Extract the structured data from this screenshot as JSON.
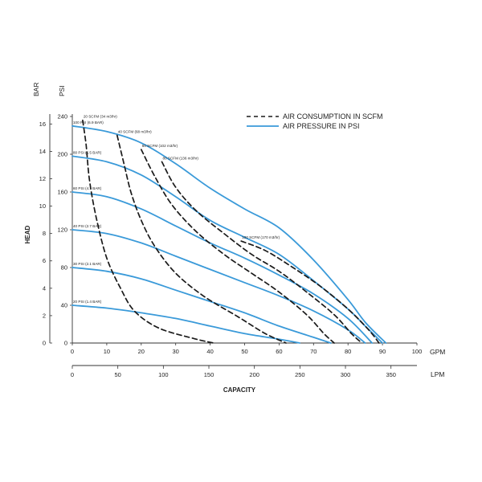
{
  "chart_data": {
    "type": "line",
    "title": "",
    "xlabel": "CAPACITY",
    "x_primary": {
      "unit": "GPM",
      "range": [
        0,
        100
      ],
      "ticks": [
        0,
        10,
        20,
        30,
        40,
        50,
        60,
        70,
        80,
        90,
        100
      ]
    },
    "x_secondary": {
      "unit": "LPM",
      "ticks": [
        0,
        50,
        100,
        150,
        200,
        250,
        300,
        350
      ]
    },
    "ylabel": "HEAD",
    "y_psi": {
      "unit": "PSI",
      "range": [
        0,
        240
      ],
      "ticks": [
        0,
        40,
        80,
        120,
        160,
        200,
        240
      ]
    },
    "y_bar": {
      "unit": "BAR",
      "ticks": [
        0,
        2,
        4,
        6,
        8,
        10,
        12,
        14,
        16
      ]
    },
    "grid": false,
    "legend": {
      "placement": "top-right",
      "entries": [
        {
          "label": "AIR CONSUMPTION IN SCFM",
          "style": "dashed",
          "color": "#1a1a1a"
        },
        {
          "label": "AIR PRESSURE IN PSI",
          "style": "solid",
          "color": "#3a9ad9"
        }
      ]
    },
    "series": [
      {
        "kind": "pressure",
        "label": "100 PSI (6.9 BAR)",
        "points": [
          [
            0,
            230
          ],
          [
            10,
            224
          ],
          [
            20,
            212
          ],
          [
            30,
            190
          ],
          [
            40,
            164
          ],
          [
            50,
            142
          ],
          [
            60,
            122
          ],
          [
            70,
            88
          ],
          [
            80,
            46
          ],
          [
            85,
            22
          ],
          [
            91,
            0
          ]
        ]
      },
      {
        "kind": "pressure",
        "label": "80 PSI (5.5 BAR)",
        "points": [
          [
            0,
            198
          ],
          [
            10,
            192
          ],
          [
            20,
            178
          ],
          [
            30,
            155
          ],
          [
            40,
            130
          ],
          [
            50,
            112
          ],
          [
            60,
            94
          ],
          [
            70,
            66
          ],
          [
            80,
            36
          ],
          [
            85,
            18
          ],
          [
            90,
            0
          ]
        ]
      },
      {
        "kind": "pressure",
        "label": "60 PSI (4.1 BAR)",
        "points": [
          [
            0,
            160
          ],
          [
            10,
            155
          ],
          [
            20,
            142
          ],
          [
            30,
            124
          ],
          [
            40,
            106
          ],
          [
            50,
            90
          ],
          [
            60,
            72
          ],
          [
            70,
            52
          ],
          [
            80,
            26
          ],
          [
            87,
            0
          ]
        ]
      },
      {
        "kind": "pressure",
        "label": "40 PSI (2.7 BAR)",
        "points": [
          [
            0,
            120
          ],
          [
            10,
            116
          ],
          [
            20,
            106
          ],
          [
            30,
            92
          ],
          [
            40,
            78
          ],
          [
            50,
            64
          ],
          [
            60,
            50
          ],
          [
            70,
            34
          ],
          [
            80,
            14
          ],
          [
            85,
            0
          ]
        ]
      },
      {
        "kind": "pressure",
        "label": "30 PSI (2.1 BAR)",
        "points": [
          [
            0,
            80
          ],
          [
            10,
            76
          ],
          [
            20,
            68
          ],
          [
            30,
            56
          ],
          [
            40,
            44
          ],
          [
            50,
            32
          ],
          [
            60,
            18
          ],
          [
            70,
            6
          ],
          [
            75,
            0
          ]
        ]
      },
      {
        "kind": "pressure",
        "label": "20 PSI (1.4 BAR)",
        "points": [
          [
            0,
            40
          ],
          [
            10,
            37
          ],
          [
            20,
            32
          ],
          [
            30,
            26
          ],
          [
            40,
            18
          ],
          [
            50,
            10
          ],
          [
            60,
            4
          ],
          [
            66,
            0
          ]
        ]
      },
      {
        "kind": "consumption",
        "label": "20 SCFM (34 m3/hr)",
        "points": [
          [
            3,
            236
          ],
          [
            4,
            210
          ],
          [
            5,
            172
          ],
          [
            7,
            132
          ],
          [
            10,
            90
          ],
          [
            14,
            58
          ],
          [
            18,
            34
          ],
          [
            25,
            16
          ],
          [
            35,
            5
          ],
          [
            41,
            0
          ]
        ]
      },
      {
        "kind": "consumption",
        "label": "40 SCFM (68 m3/hr)",
        "points": [
          [
            13,
            220
          ],
          [
            15,
            190
          ],
          [
            17,
            160
          ],
          [
            20,
            130
          ],
          [
            24,
            102
          ],
          [
            30,
            74
          ],
          [
            38,
            50
          ],
          [
            48,
            28
          ],
          [
            56,
            10
          ],
          [
            62,
            0
          ]
        ]
      },
      {
        "kind": "consumption",
        "label": "60 SCFM (102 m3/hr)",
        "points": [
          [
            20,
            205
          ],
          [
            24,
            176
          ],
          [
            29,
            146
          ],
          [
            36,
            118
          ],
          [
            44,
            94
          ],
          [
            52,
            74
          ],
          [
            60,
            54
          ],
          [
            68,
            30
          ],
          [
            73,
            10
          ],
          [
            76,
            0
          ]
        ]
      },
      {
        "kind": "consumption",
        "label": "80 SCFM (136 m3/hr)",
        "points": [
          [
            26,
            192
          ],
          [
            30,
            165
          ],
          [
            36,
            140
          ],
          [
            44,
            116
          ],
          [
            52,
            94
          ],
          [
            60,
            76
          ],
          [
            68,
            54
          ],
          [
            76,
            30
          ],
          [
            81,
            10
          ],
          [
            84,
            0
          ]
        ]
      },
      {
        "kind": "consumption",
        "label": "100 SCFM (170 m3/hr)",
        "points": [
          [
            49,
            108
          ],
          [
            56,
            98
          ],
          [
            64,
            80
          ],
          [
            72,
            60
          ],
          [
            80,
            36
          ],
          [
            86,
            14
          ],
          [
            89,
            0
          ]
        ]
      }
    ]
  },
  "labels": {
    "psi": "PSI",
    "bar": "BAR",
    "gpm": "GPM",
    "lpm": "LPM",
    "head": "HEAD",
    "capacity": "CAPACITY"
  }
}
